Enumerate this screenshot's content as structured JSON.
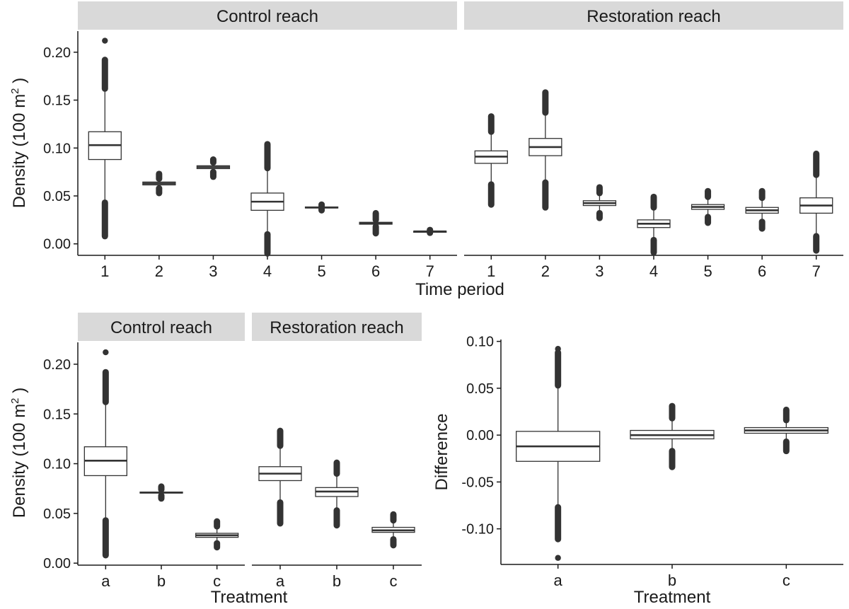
{
  "colors": {
    "strip": "#d9d9d9",
    "box_stroke": "#333333",
    "outlier": "#333333",
    "axis": "#1a1a1a"
  },
  "chart_data": [
    {
      "type": "boxplot",
      "facets": [
        "Control reach",
        "Restoration reach"
      ],
      "xlabel": "Time period",
      "ylabel": "Density (100 m2)",
      "ylabel_parts": {
        "text": "Density  (100 m",
        "sup": "2",
        "close": " )"
      },
      "ylim": [
        -0.012,
        0.222
      ],
      "yticks": [
        0.0,
        0.05,
        0.1,
        0.15,
        0.2
      ],
      "ytick_labels": [
        "0.00",
        "0.05",
        "0.10",
        "0.15",
        "0.20"
      ],
      "categories": [
        "1",
        "2",
        "3",
        "4",
        "5",
        "6",
        "7"
      ],
      "panels": [
        {
          "facet": "Control reach",
          "boxes": [
            {
              "x": "1",
              "q1": 0.088,
              "median": 0.103,
              "q3": 0.117,
              "whisker_low": 0.044,
              "whisker_high": 0.161,
              "outlier_ranges": [
                [
                  0.162,
                  0.192
                ],
                [
                  0.008,
                  0.043
                ]
              ],
              "outlier_points": [
                0.212
              ]
            },
            {
              "x": "2",
              "q1": 0.0615,
              "median": 0.063,
              "q3": 0.0645,
              "whisker_low": 0.0585,
              "whisker_high": 0.0675,
              "outlier_ranges": [
                [
                  0.068,
                  0.073
                ],
                [
                  0.053,
                  0.058
                ]
              ],
              "outlier_points": []
            },
            {
              "x": "3",
              "q1": 0.0785,
              "median": 0.08,
              "q3": 0.0815,
              "whisker_low": 0.0755,
              "whisker_high": 0.0845,
              "outlier_ranges": [
                [
                  0.085,
                  0.088
                ],
                [
                  0.07,
                  0.075
                ]
              ],
              "outlier_points": []
            },
            {
              "x": "4",
              "q1": 0.035,
              "median": 0.044,
              "q3": 0.053,
              "whisker_low": 0.011,
              "whisker_high": 0.078,
              "outlier_ranges": [
                [
                  0.079,
                  0.104
                ],
                [
                  -0.01,
                  0.01
                ]
              ],
              "outlier_points": []
            },
            {
              "x": "5",
              "q1": 0.0375,
              "median": 0.038,
              "q3": 0.0385,
              "whisker_low": 0.0365,
              "whisker_high": 0.0395,
              "outlier_ranges": [
                [
                  0.0395,
                  0.041
                ],
                [
                  0.035,
                  0.0365
                ]
              ],
              "outlier_points": []
            },
            {
              "x": "6",
              "q1": 0.0205,
              "median": 0.0215,
              "q3": 0.0225,
              "whisker_low": 0.0185,
              "whisker_high": 0.0245,
              "outlier_ranges": [
                [
                  0.025,
                  0.032
                ],
                [
                  0.011,
                  0.018
                ]
              ],
              "outlier_points": []
            },
            {
              "x": "7",
              "q1": 0.0128,
              "median": 0.013,
              "q3": 0.0132,
              "whisker_low": 0.0125,
              "whisker_high": 0.0135,
              "outlier_ranges": [
                [
                  0.0135,
                  0.0145
                ],
                [
                  0.0115,
                  0.0125
                ]
              ],
              "outlier_points": []
            }
          ]
        },
        {
          "facet": "Restoration reach",
          "boxes": [
            {
              "x": "1",
              "q1": 0.084,
              "median": 0.091,
              "q3": 0.097,
              "whisker_low": 0.063,
              "whisker_high": 0.116,
              "outlier_ranges": [
                [
                  0.117,
                  0.133
                ],
                [
                  0.041,
                  0.062
                ]
              ],
              "outlier_points": []
            },
            {
              "x": "2",
              "q1": 0.092,
              "median": 0.101,
              "q3": 0.11,
              "whisker_low": 0.065,
              "whisker_high": 0.136,
              "outlier_ranges": [
                [
                  0.137,
                  0.158
                ],
                [
                  0.038,
                  0.064
                ]
              ],
              "outlier_points": []
            },
            {
              "x": "3",
              "q1": 0.04,
              "median": 0.0425,
              "q3": 0.045,
              "whisker_low": 0.033,
              "whisker_high": 0.052,
              "outlier_ranges": [
                [
                  0.053,
                  0.059
                ],
                [
                  0.027,
                  0.032
                ]
              ],
              "outlier_points": []
            },
            {
              "x": "4",
              "q1": 0.017,
              "median": 0.021,
              "q3": 0.025,
              "whisker_low": 0.005,
              "whisker_high": 0.037,
              "outlier_ranges": [
                [
                  0.038,
                  0.049
                ],
                [
                  -0.009,
                  0.004
                ]
              ],
              "outlier_points": []
            },
            {
              "x": "5",
              "q1": 0.036,
              "median": 0.0385,
              "q3": 0.041,
              "whisker_low": 0.029,
              "whisker_high": 0.048,
              "outlier_ranges": [
                [
                  0.049,
                  0.055
                ],
                [
                  0.022,
                  0.028
                ]
              ],
              "outlier_points": []
            },
            {
              "x": "6",
              "q1": 0.032,
              "median": 0.035,
              "q3": 0.038,
              "whisker_low": 0.024,
              "whisker_high": 0.047,
              "outlier_ranges": [
                [
                  0.048,
                  0.055
                ],
                [
                  0.016,
                  0.023
                ]
              ],
              "outlier_points": []
            },
            {
              "x": "7",
              "q1": 0.032,
              "median": 0.04,
              "q3": 0.048,
              "whisker_low": 0.009,
              "whisker_high": 0.071,
              "outlier_ranges": [
                [
                  0.072,
                  0.094
                ],
                [
                  -0.007,
                  0.008
                ]
              ],
              "outlier_points": []
            }
          ]
        }
      ]
    },
    {
      "type": "boxplot",
      "facets": [
        "Control reach",
        "Restoration reach"
      ],
      "xlabel": "Treatment",
      "ylabel": "Density (100 m2)",
      "ylabel_parts": {
        "text": "Density  (100 m",
        "sup": "2",
        "close": " )"
      },
      "ylim": [
        -0.002,
        0.222
      ],
      "yticks": [
        0.0,
        0.05,
        0.1,
        0.15,
        0.2
      ],
      "ytick_labels": [
        "0.00",
        "0.05",
        "0.10",
        "0.15",
        "0.20"
      ],
      "categories": [
        "a",
        "b",
        "c"
      ],
      "panels": [
        {
          "facet": "Control reach",
          "boxes": [
            {
              "x": "a",
              "q1": 0.088,
              "median": 0.103,
              "q3": 0.117,
              "whisker_low": 0.044,
              "whisker_high": 0.161,
              "outlier_ranges": [
                [
                  0.162,
                  0.192
                ],
                [
                  0.008,
                  0.043
                ]
              ],
              "outlier_points": [
                0.212
              ]
            },
            {
              "x": "b",
              "q1": 0.0705,
              "median": 0.071,
              "q3": 0.0715,
              "whisker_low": 0.0685,
              "whisker_high": 0.0735,
              "outlier_ranges": [
                [
                  0.074,
                  0.077
                ],
                [
                  0.065,
                  0.068
                ]
              ],
              "outlier_points": []
            },
            {
              "x": "c",
              "q1": 0.026,
              "median": 0.028,
              "q3": 0.03,
              "whisker_low": 0.021,
              "whisker_high": 0.036,
              "outlier_ranges": [
                [
                  0.037,
                  0.042
                ],
                [
                  0.016,
                  0.02
                ]
              ],
              "outlier_points": []
            }
          ]
        },
        {
          "facet": "Restoration reach",
          "boxes": [
            {
              "x": "a",
              "q1": 0.083,
              "median": 0.09,
              "q3": 0.097,
              "whisker_low": 0.062,
              "whisker_high": 0.117,
              "outlier_ranges": [
                [
                  0.118,
                  0.133
                ],
                [
                  0.04,
                  0.061
                ]
              ],
              "outlier_points": []
            },
            {
              "x": "b",
              "q1": 0.067,
              "median": 0.072,
              "q3": 0.076,
              "whisker_low": 0.054,
              "whisker_high": 0.089,
              "outlier_ranges": [
                [
                  0.09,
                  0.101
                ],
                [
                  0.038,
                  0.053
                ]
              ],
              "outlier_points": []
            },
            {
              "x": "c",
              "q1": 0.031,
              "median": 0.033,
              "q3": 0.036,
              "whisker_low": 0.025,
              "whisker_high": 0.042,
              "outlier_ranges": [
                [
                  0.043,
                  0.049
                ],
                [
                  0.018,
                  0.024
                ]
              ],
              "outlier_points": []
            }
          ]
        }
      ]
    },
    {
      "type": "boxplot",
      "xlabel": "Treatment",
      "ylabel": "Difference",
      "ylim": [
        -0.138,
        0.102
      ],
      "yticks": [
        -0.1,
        -0.05,
        0.0,
        0.05,
        0.1
      ],
      "ytick_labels": [
        "-0.10",
        "-0.05",
        "0.00",
        "0.05",
        "0.10"
      ],
      "categories": [
        "a",
        "b",
        "c"
      ],
      "panels": [
        {
          "boxes": [
            {
              "x": "a",
              "q1": -0.028,
              "median": -0.012,
              "q3": 0.004,
              "whisker_low": -0.076,
              "whisker_high": 0.052,
              "outlier_ranges": [
                [
                  0.053,
                  0.088
                ],
                [
                  -0.111,
                  -0.077
                ]
              ],
              "outlier_points": [
                0.092,
                -0.131
              ]
            },
            {
              "x": "b",
              "q1": -0.004,
              "median": 0.0,
              "q3": 0.005,
              "whisker_low": -0.016,
              "whisker_high": 0.017,
              "outlier_ranges": [
                [
                  0.018,
                  0.031
                ],
                [
                  -0.034,
                  -0.017
                ]
              ],
              "outlier_points": []
            },
            {
              "x": "c",
              "q1": 0.002,
              "median": 0.005,
              "q3": 0.008,
              "whisker_low": -0.006,
              "whisker_high": 0.015,
              "outlier_ranges": [
                [
                  0.016,
                  0.027
                ],
                [
                  -0.017,
                  -0.007
                ]
              ],
              "outlier_points": []
            }
          ]
        }
      ]
    }
  ]
}
